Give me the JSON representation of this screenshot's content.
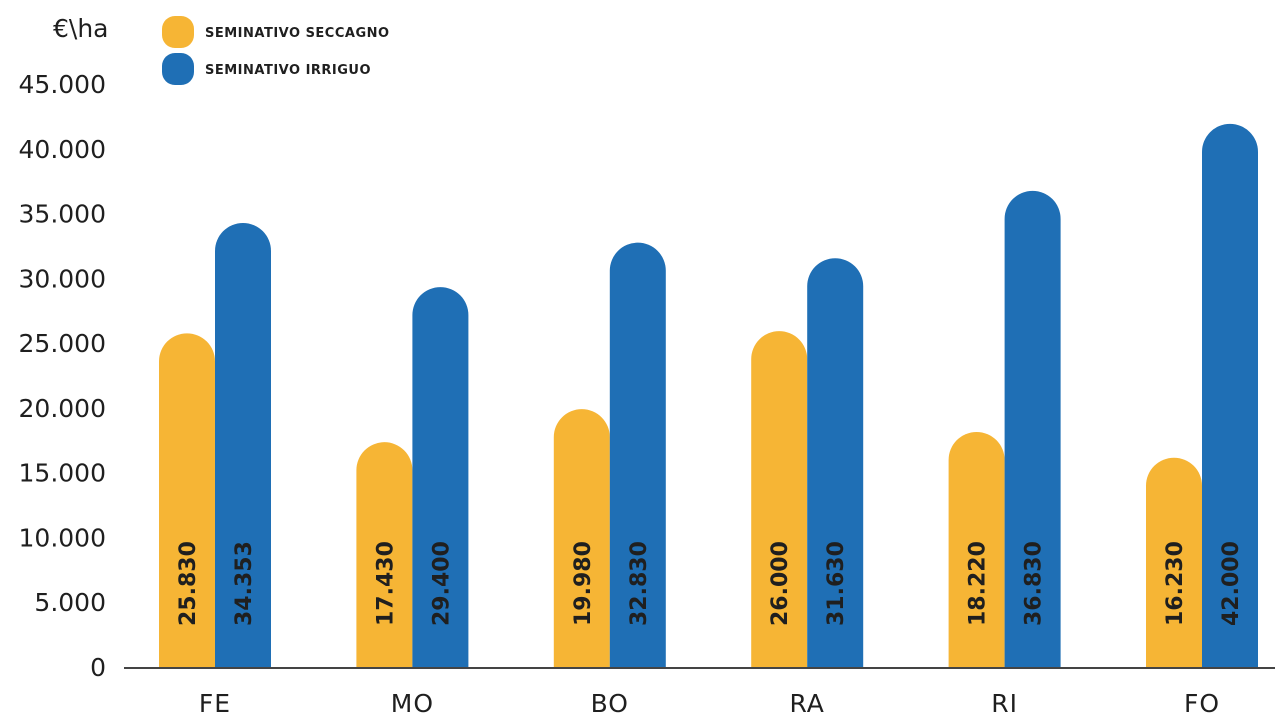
{
  "chart_data": {
    "type": "bar",
    "ylabel": "€\\ha",
    "categories": [
      "FE",
      "MO",
      "BO",
      "RA",
      "RI",
      "FO"
    ],
    "series": [
      {
        "name": "SEMINATIVO SECCAGNO",
        "color": "#f6b535",
        "values": [
          25830,
          17430,
          19980,
          26000,
          18220,
          16230
        ],
        "labels": [
          "25.830",
          "17.430",
          "19.980",
          "26.000",
          "18.220",
          "16.230"
        ]
      },
      {
        "name": "SEMINATIVO IRRIGUO",
        "color": "#1f6fb5",
        "values": [
          34353,
          29400,
          32830,
          31630,
          36830,
          42000
        ],
        "labels": [
          "34.353",
          "29.400",
          "32.830",
          "31.630",
          "36.830",
          "42.000"
        ]
      }
    ],
    "ylim": [
      0,
      45000
    ],
    "yticks": [
      0,
      5000,
      10000,
      15000,
      20000,
      25000,
      30000,
      35000,
      40000,
      45000
    ],
    "ytick_labels": [
      "0",
      "5.000",
      "10.000",
      "15.000",
      "20.000",
      "25.000",
      "30.000",
      "35.000",
      "40.000",
      "45.000"
    ],
    "legend_position": "top-left",
    "grid": false
  }
}
